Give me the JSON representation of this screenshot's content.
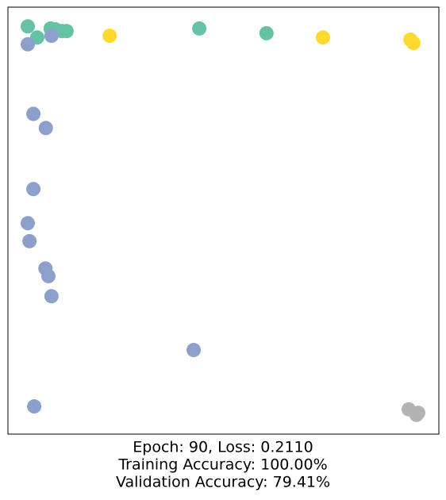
{
  "chart_data": {
    "type": "scatter",
    "xlabel": [
      "Epoch: 90, Loss: 0.2110",
      "Training Accuracy: 100.00%",
      "Validation Accuracy: 79.41%"
    ],
    "xlim": [
      0,
      1
    ],
    "ylim": [
      0,
      1
    ],
    "series": [
      {
        "color": "#66c2a5",
        "x": [
          0.046,
          0.068,
          0.099,
          0.11,
          0.125,
          0.136,
          0.444,
          0.6
        ],
        "values": [
          0.955,
          0.929,
          0.95,
          0.948,
          0.944,
          0.944,
          0.95,
          0.939
        ]
      },
      {
        "color": "#8da0cb",
        "x": [
          0.046,
          0.101,
          0.059,
          0.088,
          0.059,
          0.046,
          0.05,
          0.087,
          0.094,
          0.101,
          0.431,
          0.061
        ],
        "values": [
          0.913,
          0.933,
          0.75,
          0.717,
          0.574,
          0.494,
          0.452,
          0.388,
          0.37,
          0.323,
          0.197,
          0.065
        ]
      },
      {
        "color": "#ffd92f",
        "x": [
          0.236,
          0.731,
          0.934,
          0.941
        ],
        "values": [
          0.933,
          0.929,
          0.924,
          0.916
        ]
      },
      {
        "color": "#b3b3b3",
        "x": [
          0.93,
          0.952,
          0.948
        ],
        "values": [
          0.058,
          0.05,
          0.045
        ]
      }
    ]
  }
}
